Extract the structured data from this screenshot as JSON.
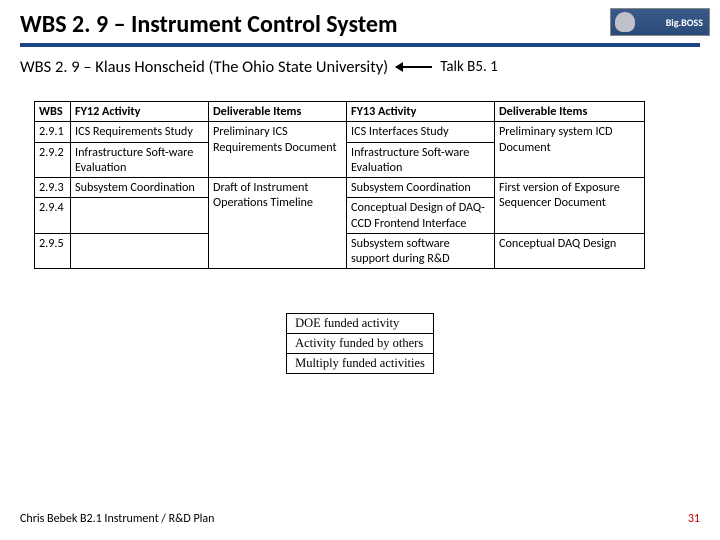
{
  "header": {
    "title": "WBS 2. 9 – Instrument Control System",
    "logo_text": "Big.BOSS"
  },
  "subtitle": {
    "text": "WBS 2. 9 – Klaus Honscheid (The Ohio State University)",
    "talk": "Talk B5. 1"
  },
  "table": {
    "headers": {
      "wbs": "WBS",
      "fy12": "FY12 Activity",
      "d1": "Deliverable Items",
      "fy13": "FY13 Activity",
      "d2": "Deliverable Items"
    },
    "rows": [
      {
        "wbs": "2.9.1",
        "fy12": "ICS Requirements Study",
        "d1": "Preliminary ICS Requirements Document",
        "fy13": "ICS Interfaces Study",
        "d2": "Preliminary system ICD Document"
      },
      {
        "wbs": "2.9.2",
        "fy12": "Infrastructure Soft-ware Evaluation",
        "d1": "",
        "fy13": "Infrastructure Soft-ware Evaluation",
        "d2": ""
      },
      {
        "wbs": "2.9.3",
        "fy12": "Subsystem Coordination",
        "d1": "Draft of Instrument Operations Timeline",
        "fy13": "Subsystem Coordination",
        "d2": "First version of Exposure Sequencer Document"
      },
      {
        "wbs": "2.9.4",
        "fy12": "",
        "d1": "",
        "fy13": "Conceptual Design of DAQ-CCD Frontend Interface",
        "d2": "Conceptual DAQ Design"
      },
      {
        "wbs": "2.9.5",
        "fy12": "",
        "d1": "",
        "fy13": "Subsystem software support during R&D",
        "d2": ""
      }
    ]
  },
  "legend": {
    "rows": [
      "DOE funded activity",
      "Activity funded by others",
      "Multiply funded activities"
    ]
  },
  "footer": {
    "left": "Chris Bebek B2.1 Instrument / R&D Plan",
    "page": "31"
  },
  "colors": {
    "rule": "#1c4587",
    "page_red": "#c00000"
  }
}
